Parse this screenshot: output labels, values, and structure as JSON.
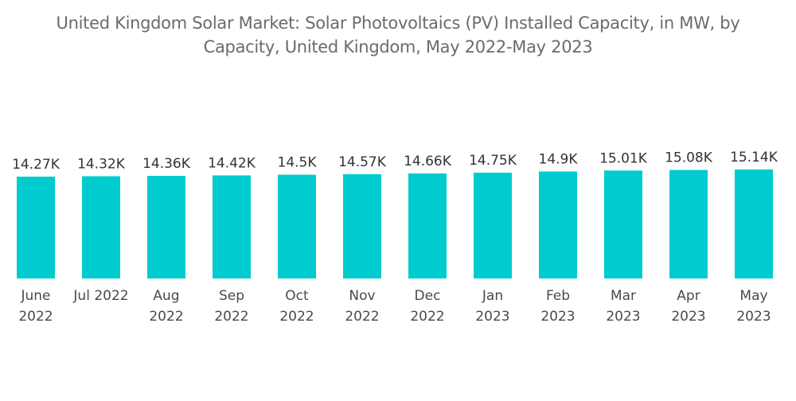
{
  "chart_data": {
    "type": "bar",
    "title": "United Kingdom Solar Market: Solar Photovoltaics (PV) Installed Capacity, in MW, by Capacity, United Kingdom, May 2022-May 2023",
    "title_lines": [
      "United Kingdom Solar Market: Solar Photovoltaics (PV) Installed Capacity, in MW, by",
      "Capacity, United Kingdom, May 2022-May 2023"
    ],
    "xlabel": "",
    "ylabel": "",
    "categories": [
      "June 2022",
      "Jul 2022",
      "Aug 2022",
      "Sep 2022",
      "Oct 2022",
      "Nov 2022",
      "Dec 2022",
      "Jan 2023",
      "Feb 2023",
      "Mar 2023",
      "Apr 2023",
      "May 2023"
    ],
    "category_lines": [
      [
        "June",
        "2022"
      ],
      [
        "Jul 2022"
      ],
      [
        "Aug",
        "2022"
      ],
      [
        "Sep",
        "2022"
      ],
      [
        "Oct",
        "2022"
      ],
      [
        "Nov",
        "2022"
      ],
      [
        "Dec",
        "2022"
      ],
      [
        "Jan",
        "2023"
      ],
      [
        "Feb",
        "2023"
      ],
      [
        "Mar",
        "2023"
      ],
      [
        "Apr",
        "2023"
      ],
      [
        "May",
        "2023"
      ]
    ],
    "values": [
      14270,
      14320,
      14360,
      14420,
      14500,
      14570,
      14660,
      14750,
      14900,
      15010,
      15080,
      15140
    ],
    "data_labels": [
      "14.27K",
      "14.32K",
      "14.36K",
      "14.42K",
      "14.5K",
      "14.57K",
      "14.66K",
      "14.75K",
      "14.9K",
      "15.01K",
      "15.08K",
      "15.14K"
    ],
    "units": "MW",
    "bar_color": "#00CCCF",
    "grid": false,
    "legend": "none"
  }
}
